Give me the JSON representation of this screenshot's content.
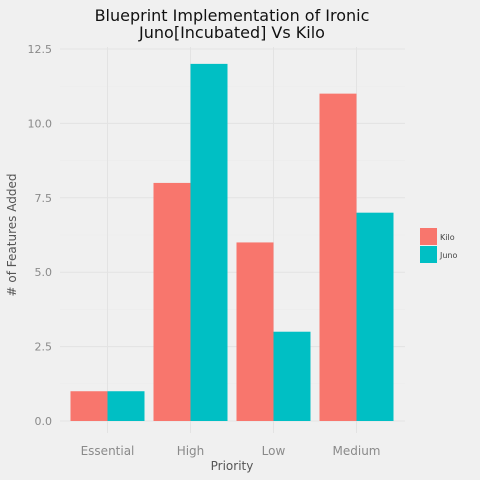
{
  "chart_data": {
    "type": "bar",
    "title_lines": [
      "Blueprint Implementation of Ironic",
      "Juno[Incubated] Vs Kilo"
    ],
    "xlabel": "Priority",
    "ylabel": "# of Features Added",
    "categories": [
      "Essential",
      "High",
      "Low",
      "Medium"
    ],
    "series": [
      {
        "name": "Kilo",
        "color": "#f8766d",
        "values": [
          1,
          8,
          6,
          11
        ]
      },
      {
        "name": "Juno",
        "color": "#00bfc4",
        "values": [
          1,
          12,
          3,
          7
        ]
      }
    ],
    "ylim": [
      0,
      12.5
    ],
    "yticks": [
      "0.0",
      "2.5",
      "5.0",
      "7.5",
      "10.0",
      "12.5"
    ],
    "grid": true,
    "legend_position": "right"
  }
}
